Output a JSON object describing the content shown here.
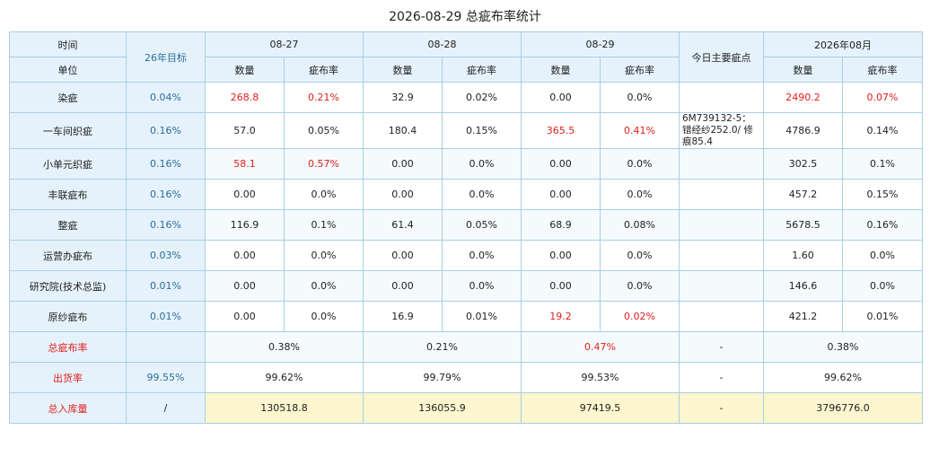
{
  "title": "2026-08-29 总疵布率统计",
  "header": {
    "time": "时间",
    "unit": "单位",
    "goal": "26年目标",
    "dates": [
      "08-27",
      "08-28",
      "08-29"
    ],
    "issues": "今日主要疵点",
    "month": "2026年08月",
    "qty": "数量",
    "rate": "疵布率"
  },
  "rows": [
    {
      "label": "染疵",
      "goal": "0.04%",
      "d1q": "268.8",
      "d1r": "0.21%",
      "d2q": "32.9",
      "d2r": "0.02%",
      "d3q": "0.00",
      "d3r": "0.0%",
      "issue": "",
      "mq": "2490.2",
      "mr": "0.07%"
    },
    {
      "label": "一车间织疵",
      "goal": "0.16%",
      "d1q": "57.0",
      "d1r": "0.05%",
      "d2q": "180.4",
      "d2r": "0.15%",
      "d3q": "365.5",
      "d3r": "0.41%",
      "issue": "6M739132-5：错经纱252.0/ 修痕85.4",
      "mq": "4786.9",
      "mr": "0.14%"
    },
    {
      "label": "小单元织疵",
      "goal": "0.16%",
      "d1q": "58.1",
      "d1r": "0.57%",
      "d2q": "0.00",
      "d2r": "0.0%",
      "d3q": "0.00",
      "d3r": "0.0%",
      "issue": "",
      "mq": "302.5",
      "mr": "0.1%"
    },
    {
      "label": "丰联疵布",
      "goal": "0.16%",
      "d1q": "0.00",
      "d1r": "0.0%",
      "d2q": "0.00",
      "d2r": "0.0%",
      "d3q": "0.00",
      "d3r": "0.0%",
      "issue": "",
      "mq": "457.2",
      "mr": "0.15%"
    },
    {
      "label": "整疵",
      "goal": "0.16%",
      "d1q": "116.9",
      "d1r": "0.1%",
      "d2q": "61.4",
      "d2r": "0.05%",
      "d3q": "68.9",
      "d3r": "0.08%",
      "issue": "",
      "mq": "5678.5",
      "mr": "0.16%"
    },
    {
      "label": "运营办疵布",
      "goal": "0.03%",
      "d1q": "0.00",
      "d1r": "0.0%",
      "d2q": "0.00",
      "d2r": "0.0%",
      "d3q": "0.00",
      "d3r": "0.0%",
      "issue": "",
      "mq": "1.60",
      "mr": "0.0%"
    },
    {
      "label": "研究院(技术总监)",
      "goal": "0.01%",
      "d1q": "0.00",
      "d1r": "0.0%",
      "d2q": "0.00",
      "d2r": "0.0%",
      "d3q": "0.00",
      "d3r": "0.0%",
      "issue": "",
      "mq": "146.6",
      "mr": "0.0%"
    },
    {
      "label": "原纱疵布",
      "goal": "0.01%",
      "d1q": "0.00",
      "d1r": "0.0%",
      "d2q": "16.9",
      "d2r": "0.01%",
      "d3q": "19.2",
      "d3r": "0.02%",
      "issue": "",
      "mq": "421.2",
      "mr": "0.01%"
    }
  ],
  "total_rate": {
    "label": "总疵布率",
    "goal": "",
    "d1": "0.38%",
    "d2": "0.21%",
    "d3": "0.47%",
    "issue": "-",
    "month": "0.38%"
  },
  "ship_rate": {
    "label": "出货率",
    "goal": "99.55%",
    "d1": "99.62%",
    "d2": "99.79%",
    "d3": "99.53%",
    "issue": "-",
    "month": "99.62%"
  },
  "inventory": {
    "label": "总入库量",
    "goal": "/",
    "d1": "130518.8",
    "d2": "136055.9",
    "d3": "97419.5",
    "issue": "-",
    "month": "3796776.0"
  },
  "colors": {
    "header_bg": "#e6f2fb",
    "border": "#a8cfe3",
    "highlight_red": "#e0201d",
    "goal_blue": "#2a6d99",
    "inventory_bg": "#fdf6cf"
  }
}
